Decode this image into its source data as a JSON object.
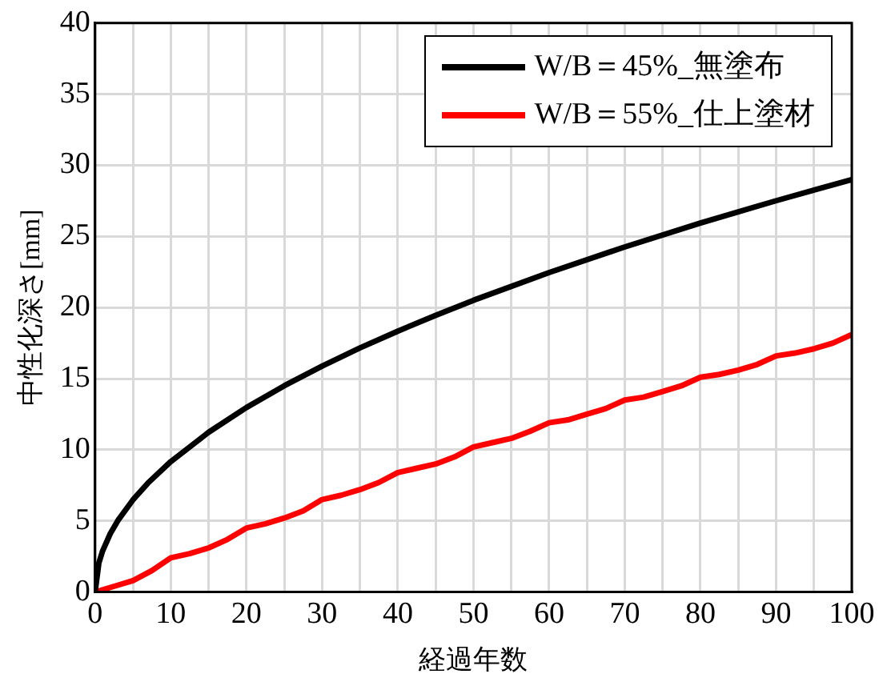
{
  "chart_data": {
    "type": "line",
    "xlabel": "経過年数",
    "ylabel": "中性化深さ[mm]",
    "xlim": [
      0,
      100
    ],
    "ylim": [
      0,
      40
    ],
    "xticks": [
      0,
      {
        "value": 5,
        "label": null
      },
      10,
      {
        "value": 15,
        "label": null
      },
      20,
      {
        "value": 25,
        "label": null
      },
      30,
      {
        "value": 35,
        "label": null
      },
      40,
      {
        "value": 45,
        "label": null
      },
      50,
      {
        "value": 55,
        "label": null
      },
      60,
      {
        "value": 65,
        "label": null
      },
      70,
      {
        "value": 75,
        "label": null
      },
      80,
      {
        "value": 85,
        "label": null
      },
      90,
      {
        "value": 95,
        "label": null
      },
      100
    ],
    "yticks": [
      0,
      5,
      10,
      15,
      20,
      25,
      30,
      35,
      40
    ],
    "grid": true,
    "legend": "top right",
    "marker": "none",
    "line_style": "solid",
    "series": [
      {
        "name": "W/B＝45%_無塗布",
        "color": "#000000",
        "x": [
          0,
          0.5,
          1,
          2,
          3,
          5,
          7,
          10,
          15,
          20,
          25,
          30,
          35,
          40,
          45,
          50,
          60,
          70,
          80,
          90,
          100
        ],
        "values": [
          0,
          2.05,
          2.9,
          4.1,
          5.02,
          6.48,
          7.67,
          9.17,
          11.23,
          12.97,
          14.5,
          15.88,
          17.16,
          18.34,
          19.45,
          20.51,
          22.46,
          24.26,
          25.94,
          27.51,
          29.0
        ]
      },
      {
        "name": "W/B＝55%_仕上塗材",
        "color": "#ff0000",
        "x": [
          0,
          2.5,
          5,
          7.5,
          10,
          12.5,
          15,
          17.5,
          20,
          22.5,
          25,
          27.5,
          30,
          32.5,
          35,
          37.5,
          40,
          42.5,
          45,
          47.5,
          50,
          52.5,
          55,
          57.5,
          60,
          62.5,
          65,
          67.5,
          70,
          72.5,
          75,
          77.5,
          80,
          82.5,
          85,
          87.5,
          90,
          92.5,
          95,
          97.5,
          100
        ],
        "values": [
          0,
          0.4,
          0.8,
          1.5,
          2.4,
          2.7,
          3.1,
          3.7,
          4.5,
          4.8,
          5.2,
          5.7,
          6.5,
          6.8,
          7.2,
          7.7,
          8.4,
          8.7,
          9.0,
          9.5,
          10.2,
          10.5,
          10.8,
          11.3,
          11.9,
          12.1,
          12.5,
          12.9,
          13.5,
          13.7,
          14.1,
          14.5,
          15.1,
          15.3,
          15.6,
          16.0,
          16.6,
          16.8,
          17.1,
          17.5,
          18.1
        ]
      }
    ]
  }
}
